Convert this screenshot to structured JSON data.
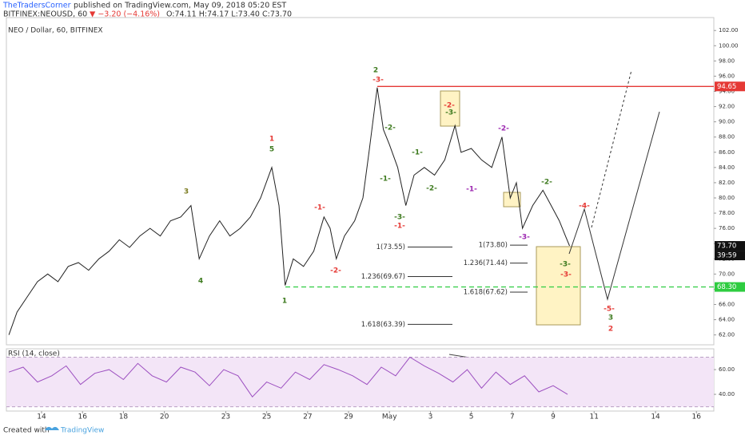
{
  "header": {
    "author": "TheTradersCorner",
    "published": "published on TradingView.com, May 09, 2018 05:20 EST",
    "symbol": "BITFINEX:NEOUSD, 60",
    "change": "▼ −3.20 (−4.16%)",
    "ohlc": "O:74.11 H:74.17 L:73.40 C:73.70",
    "countdown": "39:59"
  },
  "chart_data": [
    {
      "type": "line",
      "title": "NEO / Dollar, 60, BITFINEX",
      "x": [
        12.4,
        12.8,
        13.3,
        13.8,
        14.3,
        14.8,
        15.3,
        15.8,
        16.3,
        16.8,
        17.3,
        17.8,
        18.3,
        18.8,
        19.3,
        19.8,
        20.3,
        20.8,
        21.3,
        21.7,
        22.2,
        22.7,
        23.2,
        23.7,
        24.2,
        24.7,
        25.25,
        25.6,
        25.9,
        26.3,
        26.8,
        27.3,
        27.8,
        28.1,
        28.4,
        28.8,
        29.3,
        29.7,
        30,
        30.4,
        30.7,
        31,
        31.4,
        31.8,
        32.2,
        32.7,
        33.2,
        33.7,
        34.2,
        34.5,
        35,
        35.5,
        36,
        36.5,
        36.9,
        37.2,
        37.5,
        38,
        38.5,
        38.9,
        39.3,
        39.6,
        39.8
      ],
      "series": [
        {
          "name": "NEO / Dollar",
          "color": "#222222",
          "values": [
            62,
            65,
            67,
            69,
            70,
            69,
            71,
            71.5,
            70.5,
            72,
            73,
            74.5,
            73.5,
            75,
            76,
            75,
            77,
            77.5,
            79,
            72,
            75,
            77,
            75,
            76,
            77.5,
            80,
            84,
            79,
            68.5,
            72,
            71,
            73,
            77.5,
            76,
            72,
            75,
            77,
            80,
            86,
            94.5,
            89,
            87,
            84,
            79,
            83,
            84,
            83,
            85,
            89.5,
            86,
            86.5,
            85,
            84,
            88,
            80,
            82,
            76,
            79,
            81,
            79,
            77,
            75,
            73.7
          ]
        }
      ],
      "xlim": [
        12.28,
        46.85
      ],
      "xticks": [
        14,
        16,
        18,
        20,
        23,
        25,
        27,
        29,
        {
          "value": 31,
          "label": "May"
        },
        {
          "value": 33,
          "label": "3"
        },
        {
          "value": 35,
          "label": "5"
        },
        {
          "value": 37,
          "label": "7"
        },
        {
          "value": 39,
          "label": "9"
        },
        {
          "value": 41,
          "label": "11"
        },
        {
          "value": 44,
          "label": "14"
        },
        {
          "value": 46,
          "label": "16"
        }
      ],
      "ylim": [
        60.7,
        103.7
      ],
      "yticks": [
        {
          "value": 62,
          "label": "62.00"
        },
        {
          "value": 64,
          "label": "64.00"
        },
        {
          "value": 66,
          "label": "66.00"
        },
        {
          "value": 68,
          "label": "68.00"
        },
        {
          "value": 70,
          "label": "70.00"
        },
        {
          "value": 72,
          "label": "72.00"
        },
        {
          "value": 74,
          "label": "74.00"
        },
        {
          "value": 76,
          "label": "76.00"
        },
        {
          "value": 78,
          "label": "78.00"
        },
        {
          "value": 80,
          "label": "80.00"
        },
        {
          "value": 82,
          "label": "82.00"
        },
        {
          "value": 84,
          "label": "84.00"
        },
        {
          "value": 86,
          "label": "86.00"
        },
        {
          "value": 88,
          "label": "88.00"
        },
        {
          "value": 90,
          "label": "90.00"
        },
        {
          "value": 92,
          "label": "92.00"
        },
        {
          "value": 94,
          "label": "94.00"
        },
        {
          "value": 96,
          "label": "96.00"
        },
        {
          "value": 98,
          "label": "98.00"
        },
        {
          "value": 100,
          "label": "100.00"
        },
        {
          "value": 102,
          "label": "102.00"
        }
      ],
      "levels": [
        {
          "value": 94.65,
          "label": "94.65",
          "color": "#e53935",
          "dashed": false
        },
        {
          "value": 68.3,
          "label": "68.30",
          "color": "#2ecc40",
          "dashed": true
        }
      ],
      "price_tag": {
        "value": 73.7,
        "label": "73.70"
      },
      "fibs": [
        {
          "value": 73.55,
          "label": "1(73.55)"
        },
        {
          "value": 69.67,
          "label": "1.236(69.67)"
        },
        {
          "value": 63.39,
          "label": "1.618(63.39)"
        },
        {
          "value": 73.8,
          "label": "1(73.80)"
        },
        {
          "value": 71.44,
          "label": "1.236(71.44)"
        },
        {
          "value": 67.62,
          "label": "1.618(67.62)"
        }
      ],
      "annotations": [
        {
          "text": "2",
          "color": "#3d7a1e"
        },
        {
          "text": "-3-",
          "color": "#e53935"
        },
        {
          "text": "1",
          "color": "#e53935"
        },
        {
          "text": "5",
          "color": "#3d7a1e"
        },
        {
          "text": "3",
          "color": "#7a7a1e"
        },
        {
          "text": "4",
          "color": "#3d7a1e"
        },
        {
          "text": "1",
          "color": "#3d7a1e"
        },
        {
          "text": "-2-",
          "color": "#3d7a1e"
        },
        {
          "text": "-1-",
          "color": "#3d7a1e"
        },
        {
          "text": "-1-",
          "color": "#3d7a1e"
        },
        {
          "text": "-2-",
          "color": "#3d7a1e"
        },
        {
          "text": "-3-",
          "color": "#3d7a1e"
        },
        {
          "text": "-1-",
          "color": "#e53935"
        },
        {
          "text": "-1-",
          "color": "#e53935"
        },
        {
          "text": "-2-",
          "color": "#e53935"
        },
        {
          "text": "-2-",
          "color": "#e53935"
        },
        {
          "text": "-3-",
          "color": "#3d7a1e"
        },
        {
          "text": "-2-",
          "color": "#9c27b0"
        },
        {
          "text": "-1-",
          "color": "#9c27b0"
        },
        {
          "text": "-2-",
          "color": "#3d7a1e"
        },
        {
          "text": "-4-",
          "color": "#e53935"
        },
        {
          "text": "-3-",
          "color": "#9c27b0"
        },
        {
          "text": "-3-",
          "color": "#3d7a1e"
        },
        {
          "text": "-3-",
          "color": "#e53935"
        },
        {
          "text": "-5-",
          "color": "#e53935"
        },
        {
          "text": "3",
          "color": "#3d7a1e"
        },
        {
          "text": "2",
          "color": "#e53935"
        }
      ]
    },
    {
      "type": "line",
      "title": "RSI (14, close)",
      "x": [
        12.4,
        13.1,
        13.8,
        14.5,
        15.2,
        15.9,
        16.6,
        17.3,
        18.0,
        18.7,
        19.4,
        20.1,
        20.8,
        21.5,
        22.2,
        22.9,
        23.6,
        24.3,
        25.0,
        25.7,
        26.4,
        27.1,
        27.8,
        28.5,
        29.2,
        29.9,
        30.6,
        31.3,
        32.0,
        32.7,
        33.4,
        34.1,
        34.8,
        35.5,
        36.2,
        36.9,
        37.6,
        38.3,
        39.0,
        39.7
      ],
      "series": [
        {
          "name": "RSI",
          "color": "#9c4fc0",
          "values": [
            58,
            62,
            50,
            55,
            63,
            48,
            57,
            60,
            52,
            65,
            55,
            50,
            62,
            58,
            47,
            60,
            55,
            38,
            50,
            45,
            58,
            52,
            64,
            60,
            55,
            48,
            62,
            55,
            70,
            63,
            57,
            50,
            60,
            45,
            58,
            48,
            55,
            42,
            47,
            40
          ]
        }
      ],
      "ylim": [
        26.5,
        76.8
      ],
      "yticks": [
        {
          "value": 40,
          "label": "40.00"
        },
        {
          "value": 60,
          "label": "60.00"
        }
      ],
      "bands": [
        30,
        70
      ]
    }
  ],
  "footer": {
    "created": "Created with",
    "brand": "TradingView"
  }
}
